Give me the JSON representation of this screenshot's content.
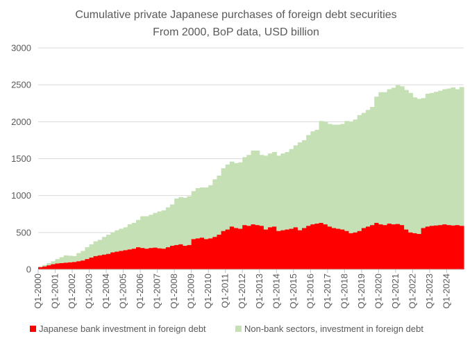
{
  "chart_data": {
    "type": "area",
    "stacked": true,
    "title": "Cumulative private Japanese purchases of foreign debt securities",
    "subtitle": "From 2000, BoP data, USD billion",
    "ylim": [
      0,
      3000
    ],
    "yticks": [
      0,
      500,
      1000,
      1500,
      2000,
      2500,
      3000
    ],
    "x_tick_labels": [
      "Q1-2000",
      "Q1-2001",
      "Q1-2002",
      "Q1-2003",
      "Q1-2004",
      "Q1-2005",
      "Q1-2006",
      "Q1-2007",
      "Q1-2008",
      "Q1-2009",
      "Q1-2010",
      "Q1-2011",
      "Q1-2012",
      "Q1-2013",
      "Q1-2014",
      "Q1-2015",
      "Q1-2016",
      "Q1-2017",
      "Q1-2018",
      "Q1-2019",
      "Q1-2020",
      "Q1-2021",
      "Q1-2022",
      "Q1-2023",
      "Q1-2024"
    ],
    "grid": true,
    "legend_position": "bottom",
    "colors": {
      "bank": "#ff0000",
      "nonbank": "#c5e0b4",
      "grid": "#d9d9d9",
      "axis": "#bfbfbf",
      "text": "#595959"
    },
    "periods_per_year": 4,
    "series": [
      {
        "name": "Japanese bank investment in foreign debt",
        "values": [
          30,
          40,
          55,
          70,
          80,
          85,
          90,
          95,
          100,
          110,
          120,
          140,
          160,
          180,
          190,
          200,
          210,
          230,
          240,
          250,
          260,
          270,
          280,
          300,
          290,
          280,
          290,
          295,
          285,
          280,
          300,
          320,
          330,
          340,
          320,
          330,
          410,
          420,
          430,
          410,
          420,
          440,
          470,
          520,
          540,
          580,
          560,
          550,
          600,
          590,
          610,
          600,
          590,
          540,
          570,
          580,
          520,
          530,
          540,
          550,
          570,
          530,
          560,
          590,
          610,
          620,
          630,
          610,
          580,
          560,
          550,
          540,
          520,
          490,
          500,
          520,
          560,
          580,
          600,
          630,
          610,
          600,
          620,
          610,
          615,
          600,
          540,
          500,
          490,
          480,
          560,
          580,
          590,
          595,
          600,
          610,
          600,
          595,
          600,
          590
        ]
      },
      {
        "name": "Non-bank sectors, investment in foreign debt",
        "values": [
          10,
          20,
          30,
          40,
          60,
          80,
          100,
          90,
          80,
          110,
          130,
          160,
          180,
          200,
          210,
          240,
          260,
          270,
          290,
          300,
          310,
          340,
          350,
          370,
          430,
          440,
          450,
          470,
          500,
          520,
          540,
          560,
          630,
          640,
          650,
          660,
          650,
          680,
          680,
          700,
          720,
          780,
          800,
          850,
          880,
          880,
          880,
          900,
          920,
          960,
          1000,
          1010,
          960,
          1000,
          1000,
          1010,
          1020,
          1040,
          1050,
          1080,
          1110,
          1190,
          1190,
          1230,
          1260,
          1270,
          1380,
          1390,
          1390,
          1400,
          1410,
          1430,
          1490,
          1510,
          1530,
          1570,
          1560,
          1580,
          1600,
          1710,
          1790,
          1800,
          1820,
          1850,
          1880,
          1880,
          1890,
          1890,
          1840,
          1830,
          1760,
          1800,
          1800,
          1810,
          1820,
          1830,
          1850,
          1870,
          1840,
          1880
        ]
      }
    ]
  }
}
